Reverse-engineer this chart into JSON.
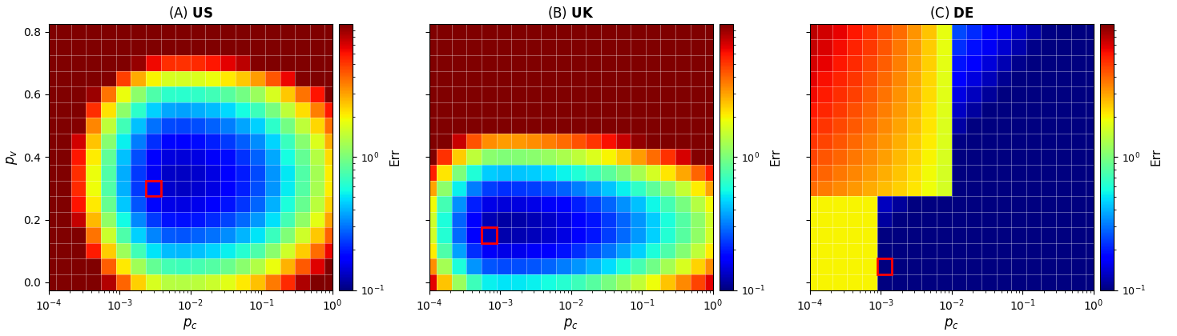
{
  "title_prefixes": [
    "(A) ",
    "(B) ",
    "(C) "
  ],
  "title_labels": [
    "US",
    "UK",
    "DE"
  ],
  "xlabel": "$p_c$",
  "ylabel": "$p_v$",
  "colorbar_label": "Err",
  "pc_log_min": -4,
  "pc_log_max": 0,
  "pv_min": 0.0,
  "pv_max": 0.8,
  "n_pc": 20,
  "n_pv": 17,
  "vmin": 0.1,
  "vmax": 10.0,
  "cmap": "jet",
  "min_pc_idxs": [
    7,
    4,
    5
  ],
  "min_pv_idxs": [
    6,
    3,
    1
  ],
  "figsize": [
    14.69,
    4.2
  ],
  "dpi": 100
}
